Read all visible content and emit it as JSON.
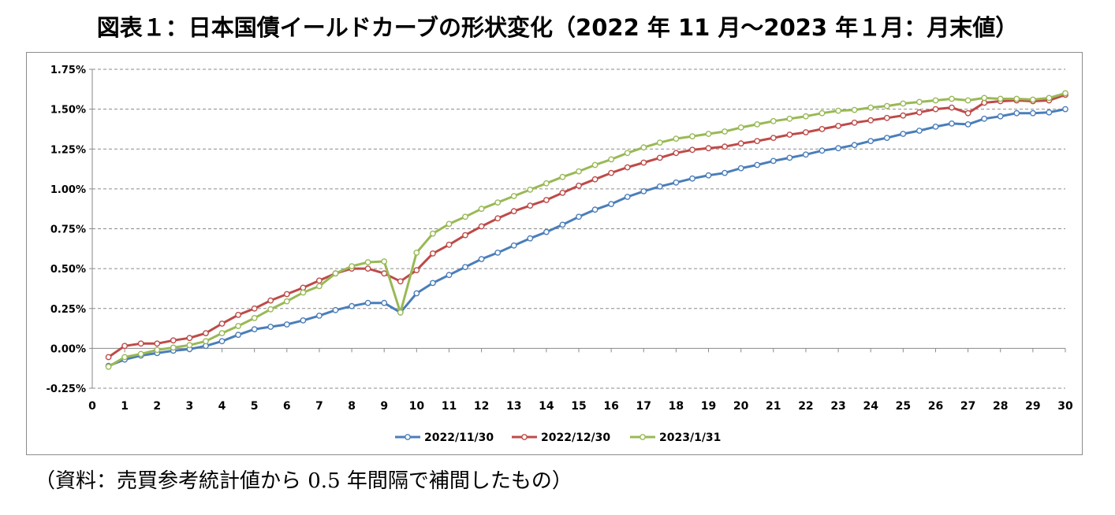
{
  "title": "図表１：日本国債イールドカーブの形状変化（2022 年 11 月～2023 年１月：月末値）",
  "caption": "（資料：売買参考統計値から 0.5 年間隔で補間したもの）",
  "chart_data": {
    "type": "line",
    "x": [
      0.5,
      1,
      1.5,
      2,
      2.5,
      3,
      3.5,
      4,
      4.5,
      5,
      5.5,
      6,
      6.5,
      7,
      7.5,
      8,
      8.5,
      9,
      9.5,
      10,
      10.5,
      11,
      11.5,
      12,
      12.5,
      13,
      13.5,
      14,
      14.5,
      15,
      15.5,
      16,
      16.5,
      17,
      17.5,
      18,
      18.5,
      19,
      19.5,
      20,
      20.5,
      21,
      21.5,
      22,
      22.5,
      23,
      23.5,
      24,
      24.5,
      25,
      25.5,
      26,
      26.5,
      27,
      27.5,
      28,
      28.5,
      29,
      29.5,
      30
    ],
    "xlim": [
      0,
      30
    ],
    "ylim": [
      -0.25,
      1.75
    ],
    "xticks": [
      0,
      1,
      2,
      3,
      4,
      5,
      6,
      7,
      8,
      9,
      10,
      11,
      12,
      13,
      14,
      15,
      16,
      17,
      18,
      19,
      20,
      21,
      22,
      23,
      24,
      25,
      26,
      27,
      28,
      29,
      30
    ],
    "yticks": [
      -0.25,
      0,
      0.25,
      0.5,
      0.75,
      1.0,
      1.25,
      1.5,
      1.75
    ],
    "ytick_labels": [
      "-0.25%",
      "0.00%",
      "0.25%",
      "0.50%",
      "0.75%",
      "1.00%",
      "1.25%",
      "1.50%",
      "1.75%"
    ],
    "grid": true,
    "legend_position": "bottom",
    "series": [
      {
        "name": "2022/11/30",
        "color": "#4a7eba",
        "values": [
          -0.11,
          -0.07,
          -0.045,
          -0.03,
          -0.015,
          -0.005,
          0.015,
          0.045,
          0.085,
          0.12,
          0.135,
          0.15,
          0.175,
          0.205,
          0.24,
          0.265,
          0.285,
          0.285,
          0.225,
          0.345,
          0.41,
          0.46,
          0.51,
          0.56,
          0.6,
          0.645,
          0.69,
          0.73,
          0.775,
          0.825,
          0.87,
          0.905,
          0.95,
          0.985,
          1.015,
          1.04,
          1.065,
          1.085,
          1.1,
          1.13,
          1.15,
          1.175,
          1.195,
          1.215,
          1.24,
          1.255,
          1.275,
          1.3,
          1.32,
          1.345,
          1.365,
          1.39,
          1.41,
          1.405,
          1.44,
          1.455,
          1.475,
          1.475,
          1.48,
          1.5
        ]
      },
      {
        "name": "2022/12/30",
        "color": "#bd4b48",
        "values": [
          -0.055,
          0.015,
          0.03,
          0.03,
          0.05,
          0.065,
          0.095,
          0.155,
          0.21,
          0.25,
          0.3,
          0.34,
          0.38,
          0.425,
          0.47,
          0.5,
          0.5,
          0.47,
          0.42,
          0.49,
          0.595,
          0.65,
          0.71,
          0.765,
          0.815,
          0.86,
          0.895,
          0.93,
          0.975,
          1.02,
          1.06,
          1.1,
          1.135,
          1.165,
          1.195,
          1.225,
          1.245,
          1.255,
          1.265,
          1.285,
          1.3,
          1.32,
          1.34,
          1.355,
          1.375,
          1.395,
          1.415,
          1.43,
          1.445,
          1.46,
          1.48,
          1.5,
          1.51,
          1.475,
          1.54,
          1.55,
          1.555,
          1.55,
          1.555,
          1.59
        ]
      },
      {
        "name": "2023/1/31",
        "color": "#99b955",
        "values": [
          -0.115,
          -0.055,
          -0.035,
          -0.01,
          0.005,
          0.02,
          0.045,
          0.095,
          0.14,
          0.19,
          0.245,
          0.295,
          0.35,
          0.39,
          0.47,
          0.515,
          0.54,
          0.545,
          0.225,
          0.6,
          0.72,
          0.78,
          0.825,
          0.875,
          0.915,
          0.955,
          0.995,
          1.035,
          1.075,
          1.11,
          1.15,
          1.185,
          1.225,
          1.26,
          1.29,
          1.315,
          1.33,
          1.345,
          1.36,
          1.385,
          1.405,
          1.425,
          1.44,
          1.455,
          1.475,
          1.49,
          1.495,
          1.51,
          1.52,
          1.535,
          1.545,
          1.555,
          1.565,
          1.555,
          1.57,
          1.565,
          1.565,
          1.56,
          1.57,
          1.6
        ]
      }
    ]
  }
}
